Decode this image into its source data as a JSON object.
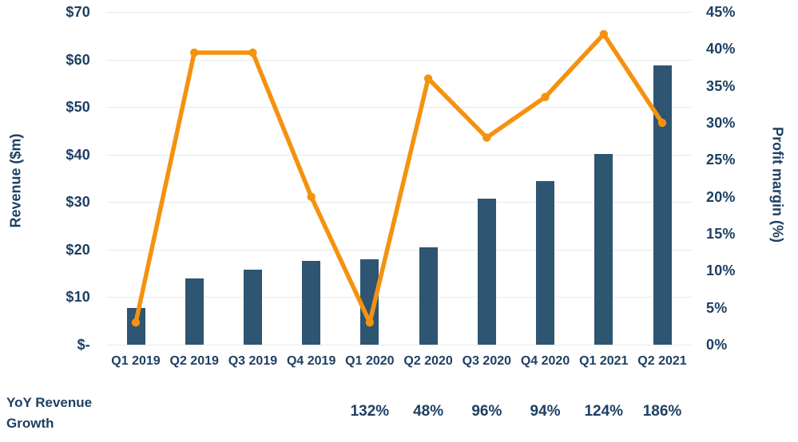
{
  "chart_data": {
    "type": "combo",
    "title": "",
    "categories": [
      "Q1 2019",
      "Q2 2019",
      "Q3 2019",
      "Q4 2019",
      "Q1 2020",
      "Q2 2020",
      "Q3 2020",
      "Q4 2020",
      "Q1 2021",
      "Q2 2021"
    ],
    "series": [
      {
        "name": "Revenue",
        "type": "bar",
        "axis": "left",
        "color": "#2e5571",
        "values": [
          7.8,
          13.9,
          15.7,
          17.7,
          18.0,
          20.5,
          30.8,
          34.4,
          40.2,
          58.8
        ]
      },
      {
        "name": "Profit margin",
        "type": "line",
        "axis": "right",
        "color": "#f4920f",
        "values": [
          3,
          39.5,
          39.5,
          20,
          3,
          36,
          28,
          33.5,
          42,
          30
        ]
      }
    ],
    "left_axis": {
      "label": "Revenue ($m)",
      "ticks": [
        "$70",
        "$60",
        "$50",
        "$40",
        "$30",
        "$20",
        "$10",
        "$-"
      ],
      "min": 0,
      "max": 70
    },
    "right_axis": {
      "label": "Profit margin (%)",
      "ticks": [
        "45%",
        "40%",
        "35%",
        "30%",
        "25%",
        "20%",
        "15%",
        "10%",
        "5%",
        "0%"
      ],
      "min": 0,
      "max": 45
    },
    "grid": true,
    "legend": "none"
  },
  "growth_row": {
    "label": "YoY Revenue Growth",
    "values": [
      "",
      "",
      "",
      "",
      "132%",
      "48%",
      "96%",
      "94%",
      "124%",
      "186%"
    ]
  },
  "colors": {
    "bar": "#2e5571",
    "line": "#f4920f",
    "text": "#1e3f63",
    "gridline": "#e9e9e9"
  }
}
